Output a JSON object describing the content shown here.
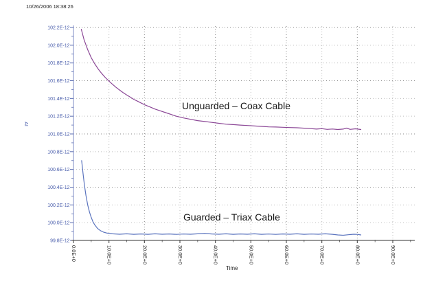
{
  "timestamp": "10/26/2006 18:38:26",
  "annotations": {
    "unguarded": "Unguarded – Coax Cable",
    "guarded": "Guarded – Triax Cable"
  },
  "colors": {
    "unguarded_series": "#8b4796",
    "guarded_series": "#5b74be",
    "y_axis_line": "#a9b2d8",
    "y_tick": "#5568b0",
    "y_tick_text": "#4257a8",
    "x_axis_line": "#999999",
    "x_tick": "#555555",
    "x_tick_text": "#222222",
    "grid_major": "#8a8a8a",
    "grid_minor": "#bdbdbd"
  },
  "chart_data": {
    "type": "line",
    "title": "",
    "xlabel": "Time",
    "ylabel": "AI",
    "xlim": [
      0,
      96
    ],
    "ylim": [
      99.8,
      102.2
    ],
    "grid": "dotted",
    "legend_position": "inline-annotations",
    "x_tick_values": [
      0,
      10,
      20,
      30,
      40,
      50,
      60,
      70,
      80,
      90
    ],
    "x_tick_labels": [
      "0.0E+0",
      "10.0E+0",
      "20.0E+0",
      "30.0E+0",
      "40.0E+0",
      "50.0E+0",
      "60.0E+0",
      "70.0E+0",
      "80.0E+0",
      "90.0E+0"
    ],
    "x_minor_tick_values": [
      5,
      15,
      25,
      35,
      45,
      55,
      65,
      75,
      85,
      95
    ],
    "y_tick_values": [
      102.2,
      102.0,
      101.8,
      101.6,
      101.4,
      101.2,
      101.0,
      100.8,
      100.6,
      100.4,
      100.2,
      100.0,
      99.8
    ],
    "y_tick_labels": [
      "102.2E-12",
      "102.0E-12",
      "101.8E-12",
      "101.6E-12",
      "101.4E-12",
      "101.2E-12",
      "101.0E-12",
      "100.8E-12",
      "100.6E-12",
      "100.4E-12",
      "100.2E-12",
      "100.0E-12",
      "99.8E-12"
    ],
    "y_major_grid_values": [
      102.2,
      101.6,
      101.0,
      100.4
    ],
    "series": [
      {
        "name": "Unguarded – Coax Cable",
        "color": "#8b4796",
        "points": [
          [
            2.2,
            102.18
          ],
          [
            3,
            102.06
          ],
          [
            4,
            101.95
          ],
          [
            5,
            101.86
          ],
          [
            6,
            101.79
          ],
          [
            7,
            101.73
          ],
          [
            8,
            101.68
          ],
          [
            9,
            101.635
          ],
          [
            10,
            101.595
          ],
          [
            11,
            101.56
          ],
          [
            12,
            101.525
          ],
          [
            13,
            101.495
          ],
          [
            14,
            101.465
          ],
          [
            15,
            101.44
          ],
          [
            16,
            101.415
          ],
          [
            17,
            101.39
          ],
          [
            18,
            101.37
          ],
          [
            19,
            101.35
          ],
          [
            20,
            101.33
          ],
          [
            21.5,
            101.305
          ],
          [
            23,
            101.28
          ],
          [
            24.5,
            101.26
          ],
          [
            26,
            101.24
          ],
          [
            27.5,
            101.22
          ],
          [
            29,
            101.2
          ],
          [
            31,
            101.18
          ],
          [
            33,
            101.165
          ],
          [
            35,
            101.15
          ],
          [
            37,
            101.14
          ],
          [
            39,
            101.13
          ],
          [
            41,
            101.12
          ],
          [
            43,
            101.11
          ],
          [
            45,
            101.105
          ],
          [
            47,
            101.1
          ],
          [
            49,
            101.095
          ],
          [
            51,
            101.09
          ],
          [
            53,
            101.085
          ],
          [
            55,
            101.08
          ],
          [
            57,
            101.078
          ],
          [
            59,
            101.075
          ],
          [
            61,
            101.072
          ],
          [
            63,
            101.07
          ],
          [
            65,
            101.065
          ],
          [
            67,
            101.06
          ],
          [
            68.5,
            101.055
          ],
          [
            70,
            101.06
          ],
          [
            71.5,
            101.052
          ],
          [
            73,
            101.056
          ],
          [
            74.5,
            101.05
          ],
          [
            76,
            101.055
          ],
          [
            77,
            101.066
          ],
          [
            78,
            101.052
          ],
          [
            79.5,
            101.058
          ],
          [
            81,
            101.05
          ]
        ]
      },
      {
        "name": "Guarded – Triax Cable",
        "color": "#5b74be",
        "points": [
          [
            2.3,
            100.7
          ],
          [
            2.7,
            100.55
          ],
          [
            3.1,
            100.42
          ],
          [
            3.5,
            100.31
          ],
          [
            4,
            100.2
          ],
          [
            4.5,
            100.12
          ],
          [
            5,
            100.06
          ],
          [
            5.5,
            100.01
          ],
          [
            6,
            99.975
          ],
          [
            6.8,
            99.935
          ],
          [
            7.6,
            99.91
          ],
          [
            8.5,
            99.893
          ],
          [
            9.5,
            99.882
          ],
          [
            11,
            99.874
          ],
          [
            13,
            99.87
          ],
          [
            15,
            99.874
          ],
          [
            17,
            99.869
          ],
          [
            19,
            99.873
          ],
          [
            21,
            99.869
          ],
          [
            23,
            99.874
          ],
          [
            25,
            99.87
          ],
          [
            27,
            99.873
          ],
          [
            29,
            99.868
          ],
          [
            31,
            99.872
          ],
          [
            33,
            99.87
          ],
          [
            35,
            99.874
          ],
          [
            37,
            99.878
          ],
          [
            39,
            99.873
          ],
          [
            41,
            99.87
          ],
          [
            43,
            99.874
          ],
          [
            45,
            99.869
          ],
          [
            47,
            99.873
          ],
          [
            49,
            99.87
          ],
          [
            51,
            99.874
          ],
          [
            53,
            99.869
          ],
          [
            55,
            99.872
          ],
          [
            57,
            99.868
          ],
          [
            59,
            99.873
          ],
          [
            61,
            99.87
          ],
          [
            63,
            99.874
          ],
          [
            65,
            99.869
          ],
          [
            67,
            99.872
          ],
          [
            69,
            99.87
          ],
          [
            71,
            99.874
          ],
          [
            73,
            99.869
          ],
          [
            74.5,
            99.862
          ],
          [
            76,
            99.858
          ],
          [
            77.5,
            99.864
          ],
          [
            79,
            99.87
          ],
          [
            80,
            99.868
          ],
          [
            81,
            99.862
          ]
        ]
      }
    ]
  }
}
